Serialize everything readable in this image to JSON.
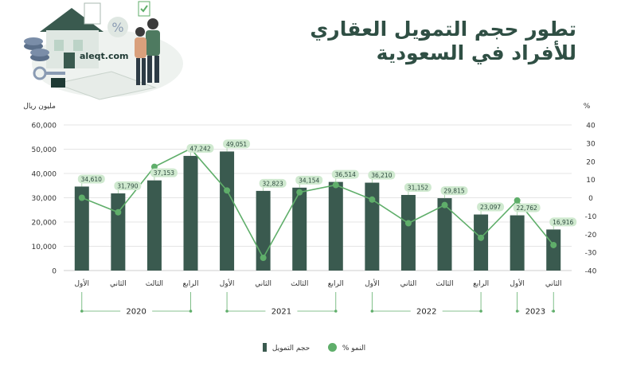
{
  "title": "تطور حجم التمويل العقاري للأفراد في السعودية",
  "site": "aleqt.com",
  "colors": {
    "bar": "#3a5a4f",
    "line": "#5fae6a",
    "title": "#2f4f44",
    "grid": "#dddddd",
    "tag": "#cfe9cf"
  },
  "chart_data": {
    "type": "bar",
    "ylabel": "مليون ريال",
    "y2label": "%",
    "ylim": [
      0,
      60000
    ],
    "y2lim": [
      -40,
      40
    ],
    "yticks": [
      "0",
      "10,000",
      "20,000",
      "30,000",
      "40,000",
      "50,000",
      "60,000"
    ],
    "y2ticks": [
      "-40",
      "-30",
      "-20",
      "-10",
      "0",
      "10",
      "20",
      "30",
      "40"
    ],
    "categories": [
      "الأول",
      "الثاني",
      "الثالث",
      "الرابع",
      "الأول",
      "الثاني",
      "الثالث",
      "الرابع",
      "الأول",
      "الثاني",
      "الثالث",
      "الرابع",
      "الأول",
      "الثاني"
    ],
    "years": [
      {
        "label": "2020",
        "start": 0,
        "end": 3
      },
      {
        "label": "2021",
        "start": 4,
        "end": 7
      },
      {
        "label": "2022",
        "start": 8,
        "end": 11
      },
      {
        "label": "2023",
        "start": 12,
        "end": 13
      }
    ],
    "series": [
      {
        "name": "حجم التمويل",
        "values": [
          34610,
          31790,
          37153,
          47242,
          49051,
          32823,
          34154,
          36514,
          36210,
          31152,
          29815,
          23097,
          22762,
          16916
        ],
        "labels": [
          "34,610",
          "31,790",
          "37,153",
          "47,242",
          "49,051",
          "32,823",
          "34,154",
          "36,514",
          "36,210",
          "31,152",
          "29,815",
          "23,097",
          "22,762",
          "16,916"
        ]
      },
      {
        "name": "النمو %",
        "values": [
          0,
          -8,
          17,
          27,
          4,
          -33,
          3,
          7,
          -1,
          -14,
          -4,
          -22,
          -1.5,
          -26
        ]
      }
    ],
    "legend": "bottom",
    "grid": true
  }
}
